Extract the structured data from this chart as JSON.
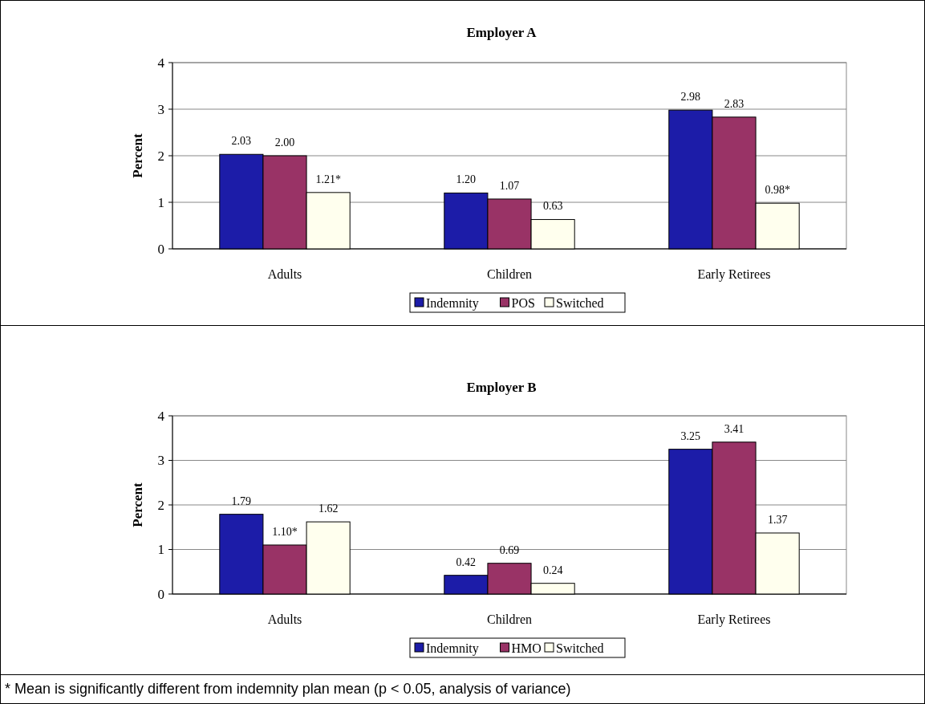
{
  "chart_data": [
    {
      "type": "bar",
      "title": "Employer A",
      "ylabel": "Percent",
      "categories": [
        "Adults",
        "Children",
        "Early Retirees"
      ],
      "ylim": [
        0,
        4
      ],
      "yticks": [
        0,
        1,
        2,
        3,
        4
      ],
      "grid": "y",
      "legend": "bottom",
      "series": [
        {
          "name": "Indemnity",
          "color": "#1c1ca8",
          "values": [
            2.03,
            1.2,
            2.98
          ],
          "value_labels": [
            "2.03",
            "1.20",
            "2.98"
          ]
        },
        {
          "name": "POS",
          "color": "#993366",
          "values": [
            2.0,
            1.07,
            2.83
          ],
          "value_labels": [
            "2.00",
            "1.07",
            "2.83"
          ]
        },
        {
          "name": "Switched",
          "color": "#ffffee",
          "values": [
            1.21,
            0.63,
            0.98
          ],
          "value_labels": [
            "1.21*",
            "0.63",
            "0.98*"
          ]
        }
      ]
    },
    {
      "type": "bar",
      "title": "Employer B",
      "ylabel": "Percent",
      "categories": [
        "Adults",
        "Children",
        "Early Retirees"
      ],
      "ylim": [
        0,
        4
      ],
      "yticks": [
        0,
        1,
        2,
        3,
        4
      ],
      "grid": "y",
      "legend": "bottom",
      "annotations": [
        "* Mean is significantly different from indemnity plan mean (p < 0.05, analysis of variance)"
      ],
      "series": [
        {
          "name": "Indemnity",
          "color": "#1c1ca8",
          "values": [
            1.79,
            0.42,
            3.25
          ],
          "value_labels": [
            "1.79",
            "0.42",
            "3.25"
          ]
        },
        {
          "name": "HMO",
          "color": "#993366",
          "values": [
            1.1,
            0.69,
            3.41
          ],
          "value_labels": [
            "1.10*",
            "0.69",
            "3.41"
          ]
        },
        {
          "name": "Switched",
          "color": "#ffffee",
          "values": [
            1.62,
            0.24,
            1.37
          ],
          "value_labels": [
            "1.62",
            "0.24",
            "1.37"
          ]
        }
      ]
    }
  ]
}
